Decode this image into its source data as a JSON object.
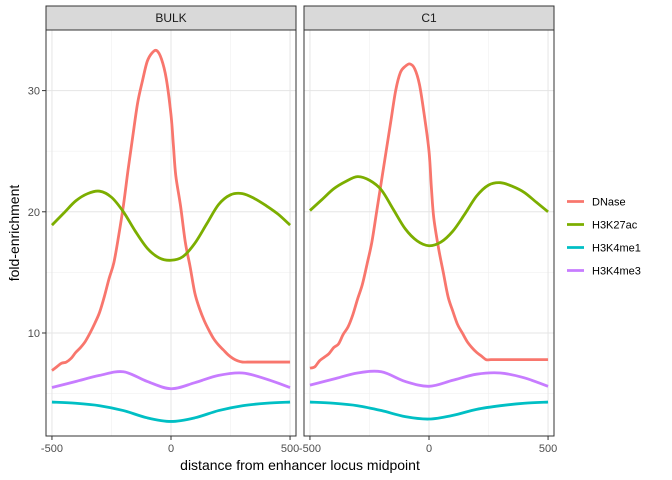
{
  "chart_data": {
    "type": "line",
    "xlabel": "distance from enhancer locus midpoint",
    "ylabel": "fold-enrichment",
    "xlim": [
      -525,
      525
    ],
    "ylim": [
      1.5,
      35
    ],
    "x_ticks": [
      -500,
      0,
      500
    ],
    "x_tick_labels": [
      "-500",
      "0",
      "500"
    ],
    "y_ticks": [
      10,
      20,
      30
    ],
    "y_tick_labels": [
      "10",
      "20",
      "30"
    ],
    "grid": true,
    "legend_position": "right",
    "series_names": [
      "DNase",
      "H3K27ac",
      "H3K4me1",
      "H3K4me3"
    ],
    "series_colors": [
      "#F8766D",
      "#7CAE00",
      "#00BFC4",
      "#C77CFF"
    ],
    "panels": [
      {
        "title": "BULK",
        "series": [
          {
            "name": "DNase",
            "color": "#F8766D",
            "x": [
              -500,
              -480,
              -460,
              -440,
              -420,
              -400,
              -380,
              -360,
              -340,
              -320,
              -300,
              -280,
              -260,
              -240,
              -220,
              -200,
              -180,
              -160,
              -140,
              -120,
              -100,
              -80,
              -60,
              -40,
              -20,
              0,
              10,
              20,
              40,
              60,
              80,
              100,
              120,
              140,
              160,
              180,
              200,
              220,
              240,
              260,
              280,
              300,
              320,
              340,
              360,
              380,
              400,
              420,
              440,
              460,
              480,
              500
            ],
            "y": [
              6.9,
              7.2,
              7.5,
              7.6,
              7.9,
              8.4,
              8.8,
              9.3,
              10.0,
              10.8,
              11.7,
              13.0,
              14.5,
              15.8,
              18.0,
              20.5,
              23.5,
              26.3,
              29.0,
              30.8,
              32.4,
              33.1,
              33.3,
              32.6,
              31.0,
              28.0,
              25.5,
              23.0,
              20.5,
              17.5,
              15.5,
              13.3,
              12.0,
              11.0,
              10.2,
              9.5,
              9.0,
              8.6,
              8.2,
              7.9,
              7.7,
              7.6,
              7.6,
              7.6,
              7.6,
              7.6,
              7.6,
              7.6,
              7.6,
              7.6,
              7.6,
              7.6
            ]
          },
          {
            "name": "H3K27ac",
            "color": "#7CAE00",
            "x": [
              -500,
              -450,
              -400,
              -350,
              -300,
              -250,
              -200,
              -150,
              -100,
              -50,
              0,
              50,
              100,
              150,
              200,
              250,
              300,
              350,
              400,
              450,
              500
            ],
            "y": [
              18.9,
              19.9,
              20.9,
              21.5,
              21.7,
              21.2,
              20.0,
              18.4,
              17.0,
              16.2,
              16.0,
              16.3,
              17.4,
              19.0,
              20.6,
              21.4,
              21.5,
              21.1,
              20.5,
              19.8,
              18.9
            ]
          },
          {
            "name": "H3K4me1",
            "color": "#00BFC4",
            "x": [
              -500,
              -400,
              -300,
              -200,
              -100,
              0,
              100,
              200,
              300,
              400,
              500
            ],
            "y": [
              4.3,
              4.2,
              4.0,
              3.6,
              3.0,
              2.7,
              3.0,
              3.6,
              4.0,
              4.2,
              4.3
            ]
          },
          {
            "name": "H3K4me3",
            "color": "#C77CFF",
            "x": [
              -500,
              -400,
              -300,
              -200,
              -100,
              0,
              100,
              200,
              300,
              400,
              500
            ],
            "y": [
              5.5,
              6.0,
              6.5,
              6.8,
              6.0,
              5.4,
              5.9,
              6.5,
              6.7,
              6.2,
              5.5
            ]
          }
        ]
      },
      {
        "title": "C1",
        "series": [
          {
            "name": "DNase",
            "color": "#F8766D",
            "x": [
              -500,
              -480,
              -460,
              -440,
              -420,
              -400,
              -380,
              -360,
              -340,
              -320,
              -300,
              -280,
              -260,
              -240,
              -220,
              -200,
              -180,
              -160,
              -140,
              -120,
              -100,
              -80,
              -60,
              -40,
              -20,
              0,
              10,
              20,
              40,
              60,
              80,
              100,
              120,
              140,
              160,
              180,
              200,
              220,
              240,
              260,
              280,
              300,
              320,
              340,
              360,
              380,
              400,
              420,
              440,
              460,
              480,
              500
            ],
            "y": [
              7.1,
              7.2,
              7.7,
              8.0,
              8.3,
              8.8,
              9.1,
              9.9,
              10.5,
              11.5,
              12.8,
              14.0,
              15.7,
              17.5,
              20.0,
              22.5,
              25.0,
              27.5,
              30.0,
              31.5,
              32.0,
              32.2,
              31.8,
              30.5,
              28.0,
              25.0,
              22.0,
              19.5,
              17.0,
              15.0,
              13.0,
              11.8,
              10.7,
              10.0,
              9.3,
              8.8,
              8.4,
              8.1,
              7.8,
              7.8,
              7.8,
              7.8,
              7.8,
              7.8,
              7.8,
              7.8,
              7.8,
              7.8,
              7.8,
              7.8,
              7.8,
              7.8
            ]
          },
          {
            "name": "H3K27ac",
            "color": "#7CAE00",
            "x": [
              -500,
              -450,
              -400,
              -350,
              -300,
              -250,
              -200,
              -150,
              -100,
              -50,
              0,
              50,
              100,
              150,
              200,
              250,
              300,
              350,
              400,
              450,
              500
            ],
            "y": [
              20.1,
              21.0,
              21.9,
              22.5,
              22.9,
              22.6,
              21.8,
              20.2,
              18.6,
              17.6,
              17.2,
              17.5,
              18.4,
              19.8,
              21.3,
              22.2,
              22.4,
              22.1,
              21.6,
              20.8,
              20.0
            ]
          },
          {
            "name": "H3K4me1",
            "color": "#00BFC4",
            "x": [
              -500,
              -400,
              -300,
              -200,
              -100,
              0,
              100,
              200,
              300,
              400,
              500
            ],
            "y": [
              4.3,
              4.2,
              4.0,
              3.6,
              3.1,
              2.9,
              3.2,
              3.7,
              4.0,
              4.2,
              4.3
            ]
          },
          {
            "name": "H3K4me3",
            "color": "#C77CFF",
            "x": [
              -500,
              -400,
              -300,
              -200,
              -100,
              0,
              100,
              200,
              300,
              400,
              500
            ],
            "y": [
              5.7,
              6.2,
              6.7,
              6.8,
              6.0,
              5.6,
              6.1,
              6.6,
              6.7,
              6.3,
              5.6
            ]
          }
        ]
      }
    ]
  }
}
